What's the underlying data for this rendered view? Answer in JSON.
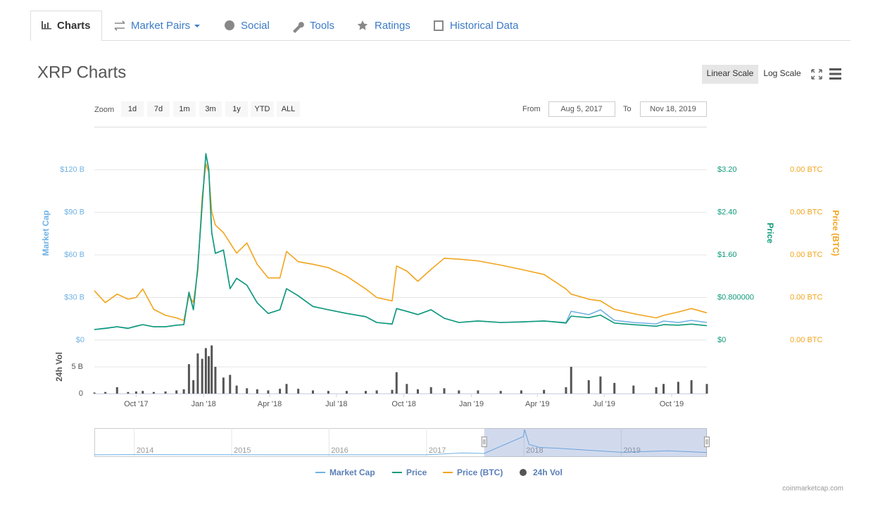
{
  "tabs": [
    "Charts",
    "Market Pairs",
    "Social",
    "Tools",
    "Ratings",
    "Historical Data"
  ],
  "header": {
    "title": "XRP Charts",
    "scale_buttons": [
      "Linear Scale",
      "Log Scale"
    ]
  },
  "toolbar": {
    "zoom_label": "Zoom",
    "zoom_buttons": [
      "1d",
      "7d",
      "1m",
      "3m",
      "1y",
      "YTD",
      "ALL"
    ],
    "from_label": "From",
    "from": "Aug 5, 2017",
    "to_label": "To",
    "to": "Nov 18, 2019"
  },
  "credit": "coinmarketcap.com",
  "chart_data": {
    "type": "line",
    "x": [
      "2017-08-05",
      "2017-08-20",
      "2017-09-05",
      "2017-09-20",
      "2017-10-01",
      "2017-10-10",
      "2017-10-25",
      "2017-11-10",
      "2017-11-25",
      "2017-12-05",
      "2017-12-12",
      "2017-12-18",
      "2017-12-24",
      "2017-12-30",
      "2018-01-04",
      "2018-01-08",
      "2018-01-12",
      "2018-01-17",
      "2018-01-28",
      "2018-02-06",
      "2018-02-15",
      "2018-03-01",
      "2018-03-15",
      "2018-03-30",
      "2018-04-15",
      "2018-04-24",
      "2018-05-10",
      "2018-05-30",
      "2018-06-20",
      "2018-07-15",
      "2018-08-10",
      "2018-08-25",
      "2018-09-15",
      "2018-09-21",
      "2018-10-05",
      "2018-10-20",
      "2018-11-07",
      "2018-11-25",
      "2018-12-15",
      "2019-01-10",
      "2019-02-10",
      "2019-03-10",
      "2019-04-10",
      "2019-05-10",
      "2019-05-17",
      "2019-06-10",
      "2019-06-26",
      "2019-07-15",
      "2019-08-10",
      "2019-09-10",
      "2019-09-20",
      "2019-10-10",
      "2019-10-28",
      "2019-11-18"
    ],
    "xlim": [
      "2017-08-05",
      "2019-11-18"
    ],
    "xticks": [
      {
        "value": "2017-10-01",
        "label": "Oct '17"
      },
      {
        "value": "2018-01-01",
        "label": "Jan '18"
      },
      {
        "value": "2018-04-01",
        "label": "Apr '18"
      },
      {
        "value": "2018-07-01",
        "label": "Jul '18"
      },
      {
        "value": "2018-10-01",
        "label": "Oct '18"
      },
      {
        "value": "2019-01-01",
        "label": "Jan '19"
      },
      {
        "value": "2019-04-01",
        "label": "Apr '19"
      },
      {
        "value": "2019-07-01",
        "label": "Jul '19"
      },
      {
        "value": "2019-10-01",
        "label": "Oct '19"
      }
    ],
    "y_label": "Market Cap",
    "ylim": [
      0,
      150
    ],
    "yticks": [
      {
        "value": 0,
        "label": "$0"
      },
      {
        "value": 30,
        "label": "$30 B"
      },
      {
        "value": 60,
        "label": "$60 B"
      },
      {
        "value": 90,
        "label": "$90 B"
      },
      {
        "value": 120,
        "label": "$120 B"
      }
    ],
    "y2_label": "Price",
    "y2lim": [
      0,
      4
    ],
    "y2ticks": [
      {
        "value": 0,
        "label": "$0"
      },
      {
        "value": 0.8,
        "label": "$0.800000"
      },
      {
        "value": 1.6,
        "label": "$1.60"
      },
      {
        "value": 2.4,
        "label": "$2.40"
      },
      {
        "value": 3.2,
        "label": "$3.20"
      }
    ],
    "y3_label": "Price (BTC)",
    "y3lim": [
      0,
      0.00025
    ],
    "y3ticks": [
      {
        "value": 0,
        "label": "0.00 BTC"
      },
      {
        "value": 5e-05,
        "label": "0.00 BTC"
      },
      {
        "value": 0.0001,
        "label": "0.00 BTC"
      },
      {
        "value": 0.00015,
        "label": "0.00 BTC"
      },
      {
        "value": 0.0002,
        "label": "0.00 BTC"
      }
    ],
    "vol_label": "24h Vol",
    "vollim": [
      0,
      10
    ],
    "volticks": [
      0,
      {
        "value": 5,
        "label": "5 B"
      }
    ],
    "grid": true,
    "series": [
      {
        "name": "Market Cap",
        "color": "#6fb1e4",
        "axis": "y",
        "values": [
          7.4,
          8.4,
          9.4,
          8.4,
          9.9,
          10.9,
          9.4,
          9.4,
          10.4,
          10.9,
          33.7,
          21.3,
          51,
          95.7,
          131.4,
          120.5,
          75.9,
          61,
          63.5,
          36.2,
          43.6,
          38.7,
          26.3,
          18.8,
          21.3,
          36.2,
          31.2,
          23.8,
          21.3,
          18.8,
          16.4,
          12.4,
          11.4,
          22.3,
          20.3,
          17.9,
          21.3,
          15.4,
          12.4,
          13.4,
          12.4,
          12.9,
          13.4,
          12.4,
          20.3,
          17.9,
          21.3,
          13.9,
          12.4,
          11.4,
          13.4,
          12.4,
          13.9,
          12.4
        ]
      },
      {
        "name": "Price",
        "color": "#0f9a7a",
        "axis": "y2",
        "values": [
          0.198,
          0.22,
          0.25,
          0.22,
          0.26,
          0.29,
          0.25,
          0.25,
          0.28,
          0.29,
          0.9,
          0.57,
          1.36,
          2.55,
          3.5,
          3.21,
          2.02,
          1.63,
          1.69,
          0.965,
          1.16,
          1.03,
          0.7,
          0.5,
          0.57,
          0.965,
          0.83,
          0.63,
          0.57,
          0.5,
          0.44,
          0.33,
          0.3,
          0.59,
          0.54,
          0.48,
          0.57,
          0.41,
          0.33,
          0.36,
          0.33,
          0.34,
          0.36,
          0.32,
          0.45,
          0.42,
          0.47,
          0.32,
          0.29,
          0.26,
          0.29,
          0.28,
          0.3,
          0.27
        ]
      },
      {
        "name": "Price (BTC)",
        "color": "#f2a41c",
        "axis": "y3",
        "values": [
          5.8e-05,
          4.4e-05,
          5.4e-05,
          4.8e-05,
          5e-05,
          6e-05,
          3.6e-05,
          2.9e-05,
          2.6e-05,
          2.3e-05,
          5.2e-05,
          4.4e-05,
          8.1e-05,
          0.000168,
          0.000207,
          0.000197,
          0.000151,
          0.000135,
          0.000126,
          0.000114,
          0.000102,
          0.000114,
          8.9e-05,
          7.3e-05,
          7.3e-05,
          0.000104,
          9.2e-05,
          8.9e-05,
          8.5e-05,
          7.5e-05,
          6e-05,
          5e-05,
          4.6e-05,
          8.7e-05,
          8.1e-05,
          6.9e-05,
          8.3e-05,
          9.6e-05,
          9.5e-05,
          9.3e-05,
          8.8e-05,
          8.3e-05,
          7.7e-05,
          6e-05,
          5.4e-05,
          4.8e-05,
          4.6e-05,
          3.6e-05,
          3.1e-05,
          2.6e-05,
          2.9e-05,
          3.3e-05,
          3.7e-05,
          3.2e-05
        ]
      },
      {
        "name": "24h Vol",
        "color": "#555555",
        "axis": "vol",
        "values": [
          0.2,
          0.3,
          1.2,
          0.3,
          0.4,
          0.5,
          0.3,
          0.4,
          0.6,
          0.8,
          5.5,
          2.5,
          7.5,
          6.5,
          8.5,
          7,
          9,
          5,
          3,
          3.5,
          1.5,
          1,
          0.8,
          0.6,
          0.9,
          1.8,
          0.9,
          0.6,
          0.5,
          0.5,
          0.5,
          0.6,
          0.7,
          4,
          1.8,
          0.8,
          1.2,
          1,
          0.6,
          0.6,
          0.5,
          0.6,
          0.7,
          1.2,
          5,
          2.5,
          3.2,
          2,
          1.5,
          1.2,
          1.8,
          2.2,
          2.5,
          1.8
        ]
      }
    ],
    "navigator": {
      "xlim": [
        "2013-08-04",
        "2019-11-18"
      ],
      "ylim": [
        0,
        140
      ],
      "xticks": [
        {
          "value": "2014-01-01",
          "label": "2014"
        },
        {
          "value": "2015-01-01",
          "label": "2015"
        },
        {
          "value": "2016-01-01",
          "label": "2016"
        },
        {
          "value": "2017-01-01",
          "label": "2017"
        },
        {
          "value": "2018-01-01",
          "label": "2018"
        },
        {
          "value": "2019-01-01",
          "label": "2019"
        }
      ],
      "x": [
        "2013-08-04",
        "2014-01-01",
        "2015-01-01",
        "2016-01-01",
        "2017-01-01",
        "2017-05-15",
        "2017-08-05",
        "2017-12-30",
        "2018-01-04",
        "2018-01-20",
        "2018-03-01",
        "2018-05-01",
        "2018-09-20",
        "2019-01-01",
        "2019-06-26",
        "2019-11-18"
      ],
      "values": [
        0.2,
        1.5,
        0.7,
        0.2,
        0.3,
        10,
        7.4,
        95.7,
        131.4,
        55,
        38.7,
        35,
        22.3,
        13.4,
        21.3,
        12.4
      ]
    }
  }
}
